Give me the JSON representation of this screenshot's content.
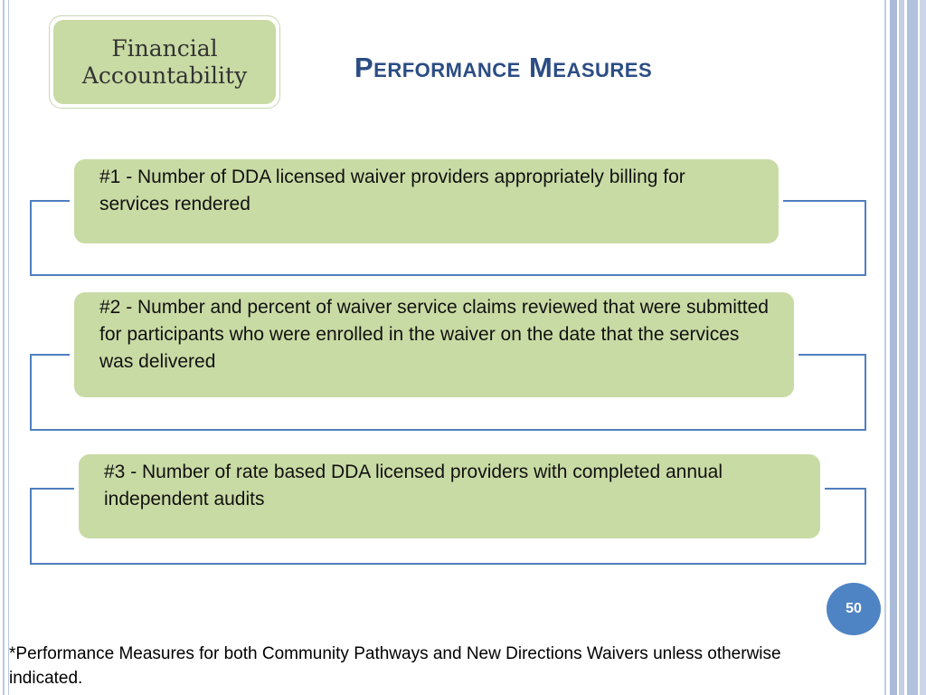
{
  "badge": {
    "line1": "Financial",
    "line2": "Accountability"
  },
  "title": "Performance Measures",
  "measures": [
    {
      "text": "#1 - Number of DDA licensed waiver providers appropriately billing for services rendered"
    },
    {
      "text": "#2 - Number and percent of waiver service claims reviewed that were submitted for participants who were enrolled in the waiver on the date that the services was delivered"
    },
    {
      "text": "#3 - Number of rate based DDA licensed providers with completed annual independent audits"
    }
  ],
  "page_number": "50",
  "footnote": "*Performance Measures for both Community Pathways and New Directions Waivers unless otherwise indicated.",
  "colors": {
    "title": "#2b4c84",
    "box_fill": "#c9dba4",
    "frame_line": "#4f7fc0",
    "page_badge": "#4f84c4"
  }
}
